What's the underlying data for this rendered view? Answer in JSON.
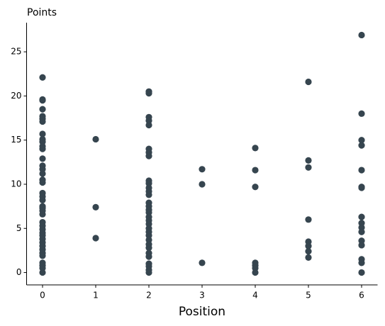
{
  "chart_data": {
    "type": "scatter",
    "y_label": "Points",
    "x_label": "Position",
    "color": "#36454f",
    "x": [
      0,
      0,
      0,
      0,
      0,
      0,
      0,
      0,
      0,
      0,
      0,
      0,
      0,
      0,
      0,
      0,
      0,
      0,
      0,
      0,
      0,
      0,
      0,
      0,
      0,
      0,
      0,
      0,
      0,
      0,
      0,
      0,
      0,
      0,
      0,
      0,
      0,
      0,
      0,
      0,
      1,
      1,
      1,
      2,
      2,
      2,
      2,
      2,
      2,
      2,
      2,
      2,
      2,
      2,
      2,
      2,
      2,
      2,
      2,
      2,
      2,
      2,
      2,
      2,
      2,
      2,
      2,
      2,
      2,
      2,
      2,
      2,
      2,
      2,
      2,
      3,
      3,
      3,
      4,
      4,
      4,
      4,
      4,
      4,
      4,
      5,
      5,
      5,
      5,
      5,
      5,
      5,
      5,
      6,
      6,
      6,
      6,
      6,
      6,
      6,
      6,
      6,
      6,
      6,
      6,
      6,
      6,
      6,
      6
    ],
    "values": [
      22.1,
      19.6,
      19.5,
      18.5,
      17.7,
      17.4,
      17.1,
      15.7,
      15.1,
      14.8,
      14.3,
      14.0,
      12.9,
      12.1,
      11.7,
      11.2,
      10.5,
      10.2,
      9.0,
      8.6,
      8.2,
      7.5,
      7.3,
      7.0,
      6.6,
      5.7,
      5.3,
      4.9,
      4.5,
      4.2,
      3.8,
      3.4,
      3.0,
      2.6,
      2.2,
      1.9,
      1.1,
      0.8,
      0.5,
      0,
      15.1,
      7.4,
      3.9,
      20.5,
      20.3,
      17.6,
      17.2,
      16.7,
      14.0,
      13.6,
      13.2,
      10.4,
      10.1,
      9.6,
      9.2,
      8.8,
      7.9,
      7.5,
      7.1,
      6.8,
      6.3,
      5.9,
      5.5,
      5.0,
      4.6,
      4.2,
      3.7,
      3.2,
      2.8,
      2.2,
      1.8,
      1.0,
      0.7,
      0.3,
      0,
      11.7,
      10.0,
      1.1,
      14.1,
      11.6,
      9.7,
      1.1,
      0.8,
      0.5,
      0,
      21.6,
      12.7,
      11.9,
      6.0,
      3.5,
      3.0,
      2.4,
      1.7,
      26.9,
      18.0,
      15.0,
      14.4,
      11.6,
      9.7,
      9.6,
      6.3,
      5.6,
      5.1,
      4.6,
      3.6,
      3.1,
      1.5,
      1.1,
      0
    ],
    "xlim": [
      -0.3,
      6.3
    ],
    "xticks": [
      0,
      1,
      2,
      3,
      4,
      5,
      6
    ],
    "ylim": [
      -1.4,
      28.3
    ],
    "yticks": [
      0,
      5,
      10,
      15,
      20,
      25
    ]
  }
}
